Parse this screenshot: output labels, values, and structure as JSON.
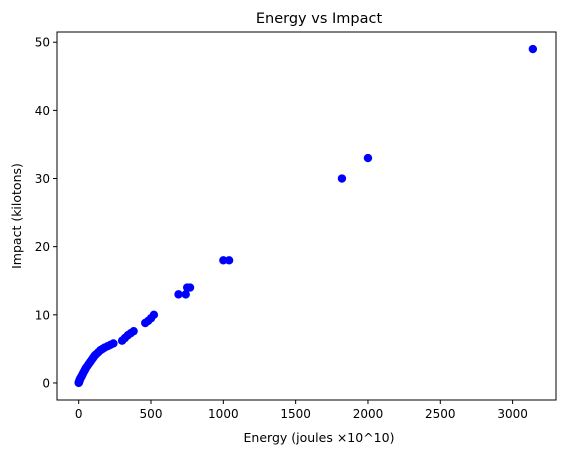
{
  "chart_data": {
    "type": "scatter",
    "title": "Energy vs Impact",
    "xlabel": "Energy (joules ×10^10)",
    "ylabel": "Impact (kilotons)",
    "xlim": [
      -150,
      3300
    ],
    "ylim": [
      -2.5,
      51.5
    ],
    "xticks": [
      0,
      500,
      1000,
      1500,
      2000,
      2500,
      3000
    ],
    "yticks": [
      0,
      10,
      20,
      30,
      40,
      50
    ],
    "xtick_labels": [
      "0",
      "500",
      "1000",
      "1500",
      "2000",
      "2500",
      "3000"
    ],
    "ytick_labels": [
      "0",
      "10",
      "20",
      "30",
      "40",
      "50"
    ],
    "grid": false,
    "legend": "none",
    "marker_color": "#0000ff",
    "series": [
      {
        "x": [
          0,
          1,
          2,
          3,
          4,
          5,
          6,
          8,
          10,
          12,
          15,
          18,
          21,
          25,
          30,
          35,
          40,
          45,
          50,
          60,
          70,
          80,
          90,
          100,
          110,
          120,
          135,
          150,
          165,
          180,
          200,
          220,
          240,
          300,
          320,
          340,
          360,
          380,
          460,
          480,
          500,
          520,
          690,
          740,
          750,
          770,
          1000,
          1040,
          1820,
          2000,
          3140
        ],
        "y": [
          0,
          0.1,
          0.15,
          0.2,
          0.25,
          0.3,
          0.4,
          0.5,
          0.6,
          0.7,
          0.8,
          0.9,
          1.0,
          1.2,
          1.4,
          1.6,
          1.8,
          2.0,
          2.2,
          2.5,
          2.8,
          3.1,
          3.4,
          3.7,
          4.0,
          4.2,
          4.5,
          4.8,
          5.0,
          5.2,
          5.4,
          5.6,
          5.8,
          6.2,
          6.6,
          7.0,
          7.3,
          7.6,
          8.8,
          9.1,
          9.5,
          10.0,
          13.0,
          13.0,
          14.0,
          14.0,
          18.0,
          18.0,
          30.0,
          33.0,
          49.0
        ]
      }
    ]
  }
}
